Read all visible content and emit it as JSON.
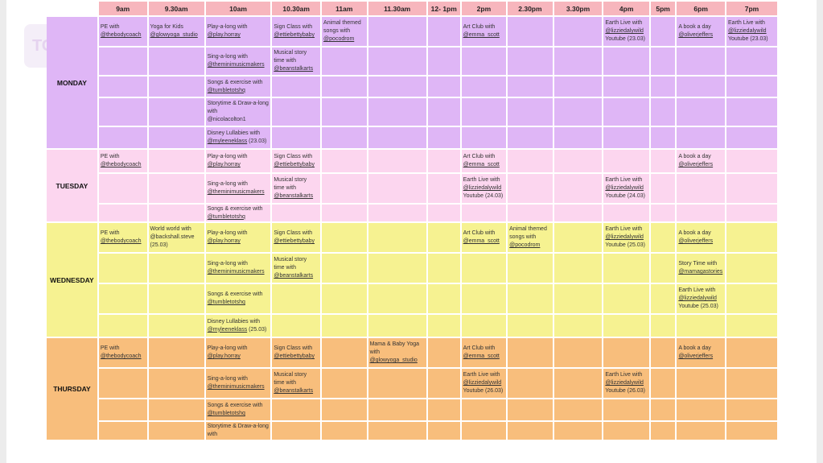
{
  "columns": [
    "9am",
    "9.30am",
    "10am",
    "10.30am",
    "11am",
    "11.30am",
    "12- 1pm",
    "2pm",
    "2.30pm",
    "3.30pm",
    "4pm",
    "5pm",
    "6pm",
    "7pm"
  ],
  "watermark": "TOM",
  "days": {
    "monday": "MONDAY",
    "tuesday": "TUESDAY",
    "wednesday": "WEDNESDAY",
    "thursday": "THURSDAY"
  },
  "entries": {
    "pe": {
      "text": "PE with",
      "handle": "@thebodycoach"
    },
    "yoga_kids": {
      "text": "Yoga for Kids",
      "handle": "@glowyoga_studio"
    },
    "play_along": {
      "text": "Play-a-long with",
      "handle": "@play.horray"
    },
    "sign_class": {
      "text": "Sign Class with",
      "handle": "@ettiebettybaby"
    },
    "animal_songs": {
      "text": "Animal themed songs with",
      "handle": "@pocodrom"
    },
    "art_club": {
      "text": "Art Club with",
      "handle": "@emma_scott"
    },
    "earth_live_2303": {
      "text": "Earth Live with",
      "handle": "@lizziedalywild",
      "extra": "Youtube (23.03)"
    },
    "earth_live_2403": {
      "text": "Earth Live with",
      "handle": "@lizziedalywild",
      "extra": "Youtube (24.03)"
    },
    "earth_live_2503": {
      "text": "Earth Live with",
      "handle": "@lizziedalywild",
      "extra": "Youtube (25.03)"
    },
    "earth_live_2603": {
      "text": "Earth Live with",
      "handle": "@lizziedalywild",
      "extra": "Youtube (26.03)"
    },
    "book_day": {
      "text": "A book a day",
      "handle": "@oliverjeffers"
    },
    "sing_along": {
      "text": "Sing-a-long with",
      "handle": "@theminimusicmakers"
    },
    "musical_story": {
      "text": "Musical story time with",
      "handle": "@beanstalkarts"
    },
    "songs_exercise": {
      "text": "Songs & exercise with",
      "handle": "@tumbletotshq"
    },
    "storytime_draw": {
      "text": "Storytime & Draw-a-long with",
      "plain": "@nicolacolton1"
    },
    "storytime_draw_short": {
      "text": "Storytime & Draw-a-long with"
    },
    "disney_2303": {
      "text": "Disney Lullabies with",
      "handle": "@myleeneklass",
      "tail": "(23.03)"
    },
    "disney_2503": {
      "text": "Disney Lullabies with",
      "handle": "@myleeneklass",
      "tail": "(25.03)"
    },
    "world_world": {
      "text": "World world with",
      "plain": "@backshall.steve",
      "extra": "(25.03)"
    },
    "story_time": {
      "text": "Story Time with",
      "handle": "@mamagastories"
    },
    "mama_baby": {
      "text": "Mama & Baby Yoga with",
      "handle": "@glowyoga_studio"
    }
  }
}
